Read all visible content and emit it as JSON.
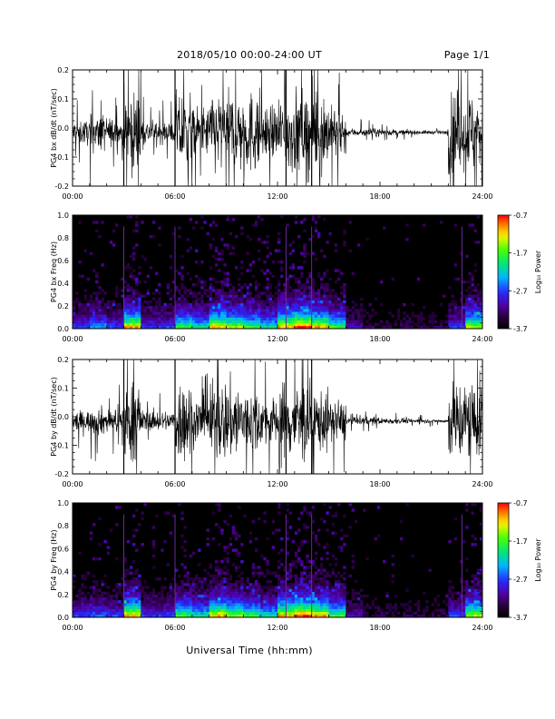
{
  "header": {
    "title": "2018/05/10  00:00-24:00 UT",
    "page": "Page 1/1"
  },
  "xlabel": "Universal Time (hh:mm)",
  "chart_data": [
    {
      "type": "line",
      "ylabel": "PG4 bx dB/dt (nT/sec)",
      "xlim": [
        "00:00",
        "24:00"
      ],
      "ylim": [
        -0.2,
        0.2
      ],
      "x_ticks": [
        "00:00",
        "06:00",
        "12:00",
        "18:00",
        "24:00"
      ],
      "y_ticks": [
        "-0.2",
        "-0.1",
        "0.0",
        "0.1",
        "0.2"
      ],
      "color": "#000000",
      "amplitude_by_hour": [
        0.06,
        0.09,
        0.07,
        0.2,
        0.06,
        0.05,
        0.2,
        0.12,
        0.2,
        0.2,
        0.2,
        0.12,
        0.2,
        0.2,
        0.2,
        0.12,
        0.02,
        0.02,
        0.015,
        0.012,
        0.01,
        0.008,
        0.2,
        0.2
      ]
    },
    {
      "type": "heatmap",
      "ylabel": "PG4 bx Freq (Hz)",
      "xlim": [
        "00:00",
        "24:00"
      ],
      "ylim": [
        0.0,
        1.0
      ],
      "x_ticks": [
        "00:00",
        "06:00",
        "12:00",
        "18:00",
        "24:00"
      ],
      "y_ticks": [
        "0.0",
        "0.2",
        "0.4",
        "0.6",
        "0.8",
        "1.0"
      ],
      "colorbar": {
        "label": "Log₁₀ Power",
        "range": [
          -3.7,
          -0.7
        ],
        "ticks": [
          "-0.7",
          "-1.7",
          "-2.7",
          "-3.7"
        ]
      },
      "activity_by_hour": [
        0.3,
        0.4,
        0.3,
        0.8,
        0.3,
        0.3,
        0.6,
        0.5,
        0.8,
        0.7,
        0.6,
        0.5,
        0.8,
        0.9,
        0.8,
        0.6,
        0.2,
        0.1,
        0.1,
        0.1,
        0.1,
        0.1,
        0.3,
        0.7
      ]
    },
    {
      "type": "line",
      "ylabel": "PG4 by dB/dt (nT/sec)",
      "xlim": [
        "00:00",
        "24:00"
      ],
      "ylim": [
        -0.2,
        0.2
      ],
      "x_ticks": [
        "00:00",
        "06:00",
        "12:00",
        "18:00",
        "24:00"
      ],
      "y_ticks": [
        "-0.2",
        "-0.1",
        "0.0",
        "0.1",
        "0.2"
      ],
      "color": "#000000",
      "amplitude_by_hour": [
        0.05,
        0.07,
        0.06,
        0.2,
        0.05,
        0.05,
        0.2,
        0.12,
        0.2,
        0.2,
        0.15,
        0.12,
        0.2,
        0.2,
        0.15,
        0.1,
        0.02,
        0.02,
        0.015,
        0.012,
        0.01,
        0.008,
        0.2,
        0.2
      ]
    },
    {
      "type": "heatmap",
      "ylabel": "PG4 by Freq (Hz)",
      "xlim": [
        "00:00",
        "24:00"
      ],
      "ylim": [
        0.0,
        1.0
      ],
      "x_ticks": [
        "00:00",
        "06:00",
        "12:00",
        "18:00",
        "24:00"
      ],
      "y_ticks": [
        "0.0",
        "0.2",
        "0.4",
        "0.6",
        "0.8",
        "1.0"
      ],
      "colorbar": {
        "label": "Log₁₀ Power",
        "range": [
          -3.7,
          -0.7
        ],
        "ticks": [
          "-0.7",
          "-1.7",
          "-2.7",
          "-3.7"
        ]
      },
      "activity_by_hour": [
        0.3,
        0.35,
        0.3,
        0.8,
        0.3,
        0.3,
        0.6,
        0.5,
        0.8,
        0.7,
        0.6,
        0.5,
        0.8,
        0.9,
        0.8,
        0.6,
        0.2,
        0.1,
        0.1,
        0.1,
        0.1,
        0.1,
        0.3,
        0.7
      ]
    }
  ]
}
